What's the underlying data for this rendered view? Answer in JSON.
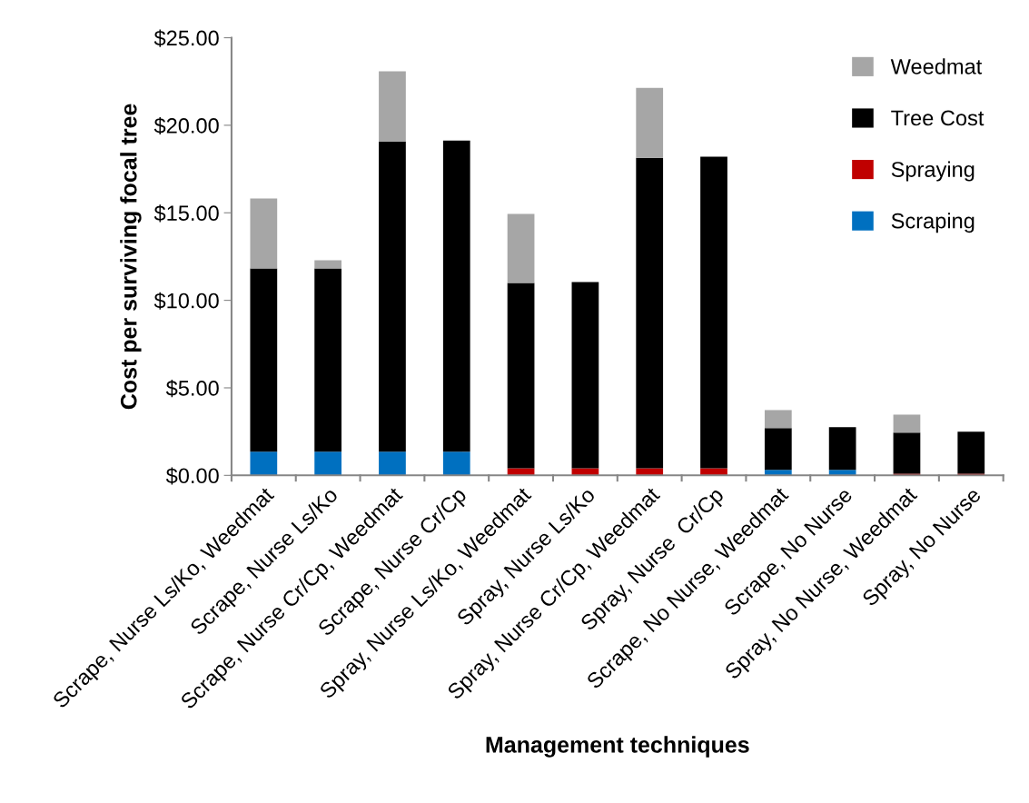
{
  "chart_data": {
    "type": "bar",
    "stacked": true,
    "xlabel": "Management techniques",
    "ylabel": "Cost per surviving focal tree",
    "categories": [
      "Scrape, Nurse Ls/Ko, Weedmat",
      "Scrape, Nurse Ls/Ko",
      "Scrape, Nurse Cr/Cp, Weedmat",
      "Scrape, Nurse Cr/Cp",
      "Spray, Nurse Ls/Ko, Weedmat",
      "Spray, Nurse Ls/Ko",
      "Spray, Nurse Cr/Cp, Weedmat",
      "Spray, Nurse  Cr/Cp",
      "Scrape, No Nurse, Weedmat",
      "Scrape, No Nurse",
      "Spray, No Nurse, Weedmat",
      "Spray, No Nurse"
    ],
    "series": [
      {
        "name": "Scraping",
        "color": "#0070c0",
        "values": [
          1.35,
          1.35,
          1.35,
          1.35,
          0,
          0,
          0,
          0,
          0.31,
          0.31,
          0,
          0
        ]
      },
      {
        "name": "Spraying",
        "color": "#c00000",
        "values": [
          0,
          0,
          0,
          0,
          0.4,
          0.4,
          0.4,
          0.4,
          0,
          0,
          0.1,
          0.1
        ]
      },
      {
        "name": "Tree Cost",
        "color": "#000000",
        "values": [
          10.47,
          10.47,
          17.73,
          17.78,
          10.59,
          10.64,
          17.74,
          17.8,
          2.39,
          2.44,
          2.34,
          2.39
        ]
      },
      {
        "name": "Weedmat",
        "color": "#a6a6a6",
        "values": [
          4.0,
          0.47,
          4.0,
          0,
          3.94,
          0,
          4.0,
          0,
          1.03,
          0,
          1.03,
          0
        ]
      }
    ],
    "ylim": [
      0,
      25
    ],
    "yticks": [
      {
        "value": 0,
        "label": "$0.00"
      },
      {
        "value": 5,
        "label": "$5.00"
      },
      {
        "value": 10,
        "label": "$10.00"
      },
      {
        "value": 15,
        "label": "$15.00"
      },
      {
        "value": 20,
        "label": "$20.00"
      },
      {
        "value": 25,
        "label": "$25.00"
      }
    ],
    "legend": "top right",
    "grid": false
  }
}
